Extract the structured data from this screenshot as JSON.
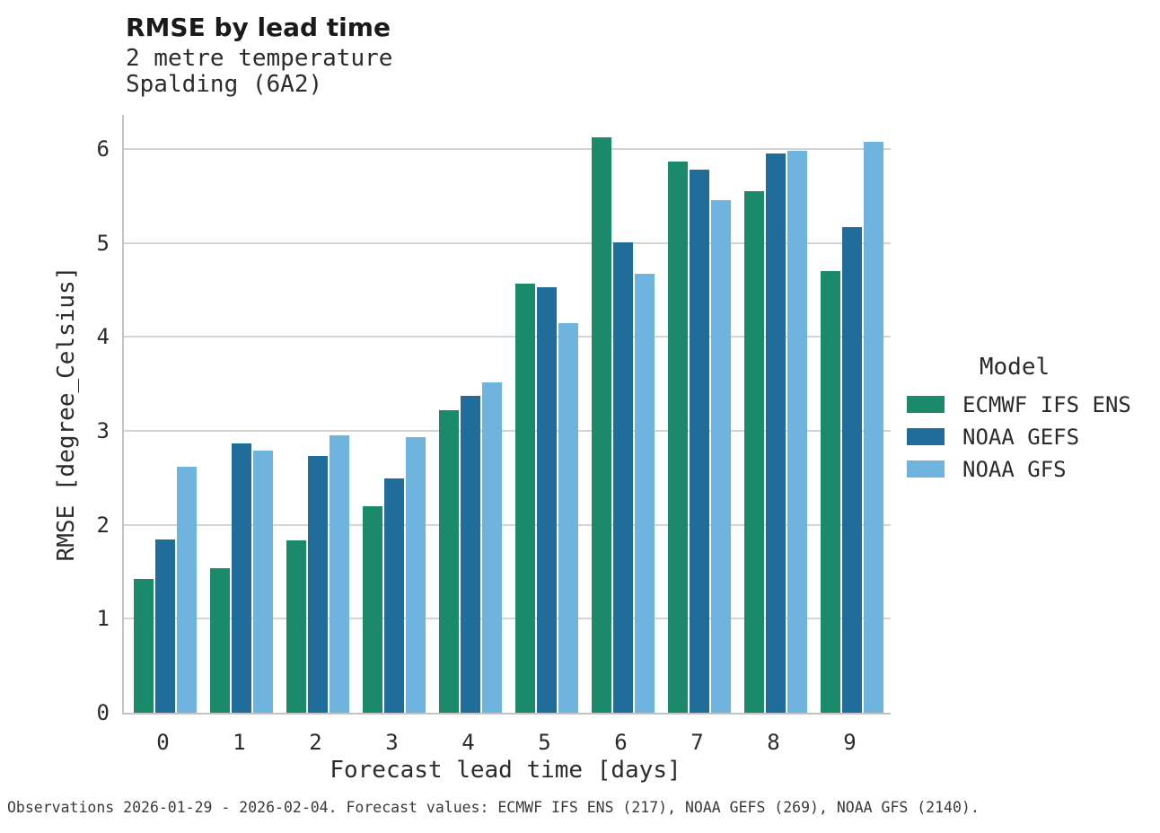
{
  "header": {
    "title": "RMSE by lead time",
    "subtitle1": "2 metre temperature",
    "subtitle2": "Spalding (6A2)"
  },
  "footer": {
    "caption": "Observations 2026-01-29 - 2026-02-04. Forecast values: ECMWF IFS ENS (217), NOAA GEFS (269), NOAA GFS (2140)."
  },
  "legend": {
    "title": "Model"
  },
  "colors": {
    "ecmwf_green": "#1b8a6b",
    "gefs_blue": "#206d9c",
    "gfs_lightblue": "#6eb4de",
    "gridline": "#d4d4d4",
    "spine": "#c3c3c3"
  },
  "chart_data": {
    "type": "bar",
    "title": "RMSE by lead time",
    "subtitle": [
      "2 metre temperature",
      "Spalding (6A2)"
    ],
    "categories": [
      "0",
      "1",
      "2",
      "3",
      "4",
      "5",
      "6",
      "7",
      "8",
      "9"
    ],
    "xlabel": "Forecast lead time [days]",
    "ylabel": "RMSE [degree_Celsius]",
    "ylim": [
      0,
      6.36
    ],
    "yticks": [
      0,
      1,
      2,
      3,
      4,
      5,
      6
    ],
    "grid": "horizontal",
    "legend_title": "Model",
    "legend_position": "right",
    "series": [
      {
        "name": "ECMWF IFS ENS",
        "color": "#1b8a6b",
        "values": [
          1.42,
          1.54,
          1.83,
          2.2,
          3.22,
          4.57,
          6.12,
          5.87,
          5.55,
          4.7
        ]
      },
      {
        "name": "NOAA GEFS",
        "color": "#206d9c",
        "values": [
          1.84,
          2.87,
          2.73,
          2.49,
          3.37,
          4.53,
          5.01,
          5.78,
          5.95,
          5.17
        ]
      },
      {
        "name": "NOAA GFS",
        "color": "#6eb4de",
        "values": [
          2.62,
          2.79,
          2.95,
          2.93,
          3.52,
          4.15,
          4.67,
          5.46,
          5.98,
          6.08
        ]
      }
    ]
  }
}
